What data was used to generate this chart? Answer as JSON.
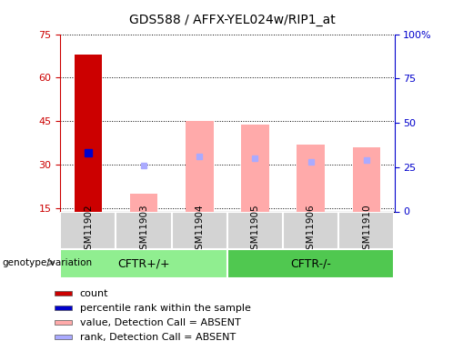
{
  "title": "GDS588 / AFFX-YEL024w/RIP1_at",
  "samples": [
    "GSM11902",
    "GSM11903",
    "GSM11904",
    "GSM11905",
    "GSM11906",
    "GSM11910"
  ],
  "ylim_left": [
    14,
    75
  ],
  "ylim_right": [
    0,
    100
  ],
  "yticks_left": [
    15,
    30,
    45,
    60,
    75
  ],
  "yticks_right": [
    0,
    25,
    50,
    75,
    100
  ],
  "count_bar": {
    "sample": "GSM11902",
    "value": 68,
    "color": "#cc0000"
  },
  "percentile_bar": {
    "sample": "GSM11902",
    "value": 33,
    "color": "#0000cc"
  },
  "absent_values": {
    "GSM11903": 20,
    "GSM11904": 45,
    "GSM11905": 44,
    "GSM11906": 37,
    "GSM11910": 36
  },
  "absent_ranks": {
    "GSM11903": 26,
    "GSM11904": 31,
    "GSM11905": 30,
    "GSM11906": 28,
    "GSM11910": 29
  },
  "absent_value_color": "#ffaaaa",
  "absent_rank_color": "#aaaaff",
  "groups": [
    {
      "label": "CFTR+/+",
      "samples": [
        "GSM11902",
        "GSM11903",
        "GSM11904"
      ],
      "color": "#90ee90"
    },
    {
      "label": "CFTR-/-",
      "samples": [
        "GSM11905",
        "GSM11906",
        "GSM11910"
      ],
      "color": "#50c850"
    }
  ],
  "group_label": "genotype/variation",
  "legend_items": [
    {
      "label": "count",
      "color": "#cc0000"
    },
    {
      "label": "percentile rank within the sample",
      "color": "#0000cc"
    },
    {
      "label": "value, Detection Call = ABSENT",
      "color": "#ffaaaa"
    },
    {
      "label": "rank, Detection Call = ABSENT",
      "color": "#aaaaff"
    }
  ],
  "bar_width": 0.5,
  "sample_area_bg": "#d3d3d3",
  "dotted_grid_color": "#000000",
  "left_axis_color": "#cc0000",
  "right_axis_color": "#0000cc"
}
